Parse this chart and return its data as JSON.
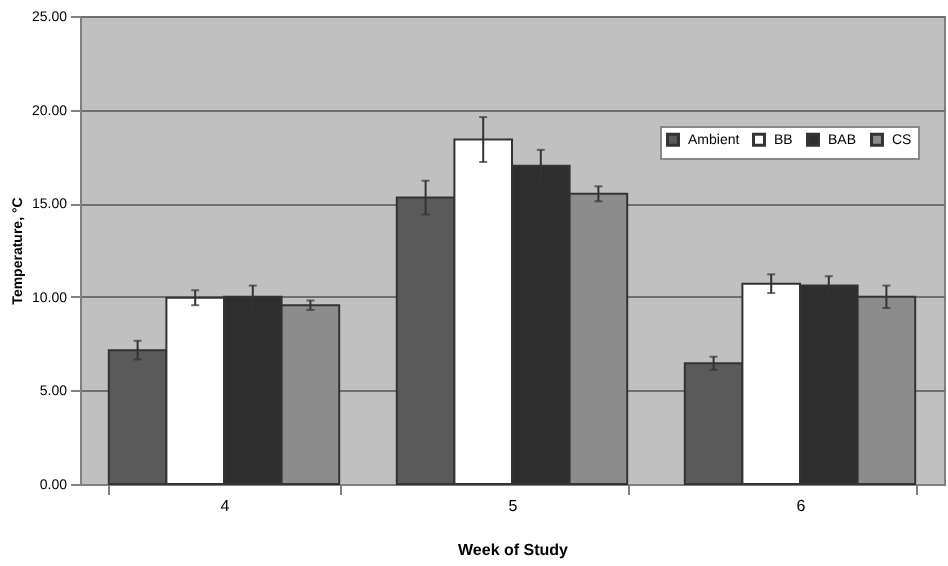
{
  "chart_data": {
    "type": "bar",
    "xlabel": "Week of Study",
    "ylabel": "Temperature, °C",
    "categories": [
      "4",
      "5",
      "6"
    ],
    "series": [
      {
        "name": "Ambient",
        "color": "#5a5a5a",
        "values": [
          7.15,
          15.3,
          6.45
        ],
        "errors": [
          0.5,
          0.9,
          0.35
        ]
      },
      {
        "name": "BB",
        "color": "#ffffff",
        "values": [
          9.95,
          18.4,
          10.7
        ],
        "errors": [
          0.4,
          1.2,
          0.5
        ]
      },
      {
        "name": "BAB",
        "color": "#2e2e2e",
        "values": [
          10.0,
          17.0,
          10.6
        ],
        "errors": [
          0.6,
          0.85,
          0.5
        ]
      },
      {
        "name": "CS",
        "color": "#8c8c8c",
        "values": [
          9.55,
          15.5,
          10.0
        ],
        "errors": [
          0.25,
          0.4,
          0.6
        ]
      }
    ],
    "ylim": [
      0,
      25
    ],
    "yticks": [
      {
        "value": 0,
        "label": "0.00"
      },
      {
        "value": 5,
        "label": "5.00"
      },
      {
        "value": 10,
        "label": "10.00"
      },
      {
        "value": 15,
        "label": "15.00"
      },
      {
        "value": 20,
        "label": "20.00"
      },
      {
        "value": 25,
        "label": "25.00"
      }
    ],
    "grid": "y",
    "legend": "top right"
  }
}
